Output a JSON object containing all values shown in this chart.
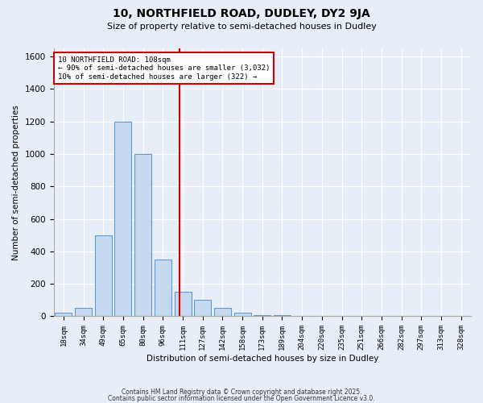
{
  "title1": "10, NORTHFIELD ROAD, DUDLEY, DY2 9JA",
  "title2": "Size of property relative to semi-detached houses in Dudley",
  "xlabel": "Distribution of semi-detached houses by size in Dudley",
  "ylabel": "Number of semi-detached properties",
  "bins": [
    "18sqm",
    "34sqm",
    "49sqm",
    "65sqm",
    "80sqm",
    "96sqm",
    "111sqm",
    "127sqm",
    "142sqm",
    "158sqm",
    "173sqm",
    "189sqm",
    "204sqm",
    "220sqm",
    "235sqm",
    "251sqm",
    "266sqm",
    "282sqm",
    "297sqm",
    "313sqm",
    "328sqm"
  ],
  "values": [
    20,
    50,
    500,
    1200,
    1000,
    350,
    150,
    100,
    50,
    20,
    5,
    5,
    0,
    0,
    0,
    0,
    0,
    0,
    0,
    0,
    0
  ],
  "bar_color": "#c6d9f0",
  "bar_edge_color": "#5a9bd4",
  "vline_x": 5.85,
  "vline_color": "#cc0000",
  "annotation_line1": "10 NORTHFIELD ROAD: 108sqm",
  "annotation_line2": "← 90% of semi-detached houses are smaller (3,032)",
  "annotation_line3": "10% of semi-detached houses are larger (322) →",
  "annotation_box_color": "#cc0000",
  "footer1": "Contains HM Land Registry data © Crown copyright and database right 2025.",
  "footer2": "Contains public sector information licensed under the Open Government Licence v3.0.",
  "ylim": [
    0,
    1650
  ],
  "yticks": [
    0,
    200,
    400,
    600,
    800,
    1000,
    1200,
    1400,
    1600
  ],
  "bg_color": "#e8eef7",
  "plot_bg_color": "#e8eef7"
}
